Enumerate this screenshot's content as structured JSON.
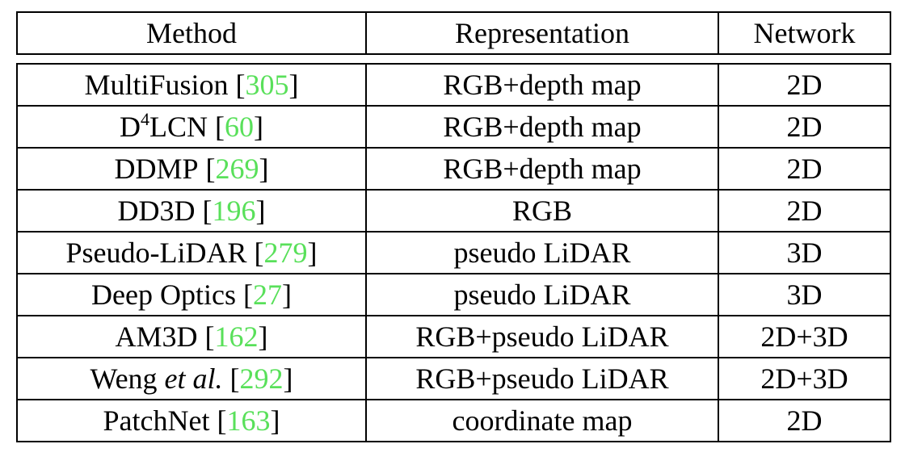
{
  "table": {
    "headers": [
      "Method",
      "Representation",
      "Network"
    ],
    "rows": [
      {
        "method_pre": "MultiFusion",
        "method_sup": "",
        "method_post": "",
        "method_italic": "",
        "method_tail": "",
        "cite": "305",
        "representation": "RGB+depth map",
        "network": "2D"
      },
      {
        "method_pre": "D",
        "method_sup": "4",
        "method_post": "LCN",
        "method_italic": "",
        "method_tail": "",
        "cite": "60",
        "representation": "RGB+depth map",
        "network": "2D"
      },
      {
        "method_pre": "DDMP",
        "method_sup": "",
        "method_post": "",
        "method_italic": "",
        "method_tail": "",
        "cite": "269",
        "representation": "RGB+depth map",
        "network": "2D"
      },
      {
        "method_pre": "DD3D",
        "method_sup": "",
        "method_post": "",
        "method_italic": "",
        "method_tail": "",
        "cite": "196",
        "representation": "RGB",
        "network": "2D"
      },
      {
        "method_pre": "Pseudo-LiDAR",
        "method_sup": "",
        "method_post": "",
        "method_italic": "",
        "method_tail": "",
        "cite": "279",
        "representation": "pseudo LiDAR",
        "network": "3D"
      },
      {
        "method_pre": "Deep Optics",
        "method_sup": "",
        "method_post": "",
        "method_italic": "",
        "method_tail": "",
        "cite": "27",
        "representation": "pseudo LiDAR",
        "network": "3D"
      },
      {
        "method_pre": "AM3D",
        "method_sup": "",
        "method_post": "",
        "method_italic": "",
        "method_tail": "",
        "cite": "162",
        "representation": "RGB+pseudo LiDAR",
        "network": "2D+3D"
      },
      {
        "method_pre": "Weng",
        "method_sup": "",
        "method_post": "",
        "method_italic": "et al.",
        "method_tail": "",
        "cite": "292",
        "representation": "RGB+pseudo LiDAR",
        "network": "2D+3D"
      },
      {
        "method_pre": "PatchNet",
        "method_sup": "",
        "method_post": "",
        "method_italic": "",
        "method_tail": "",
        "cite": "163",
        "representation": "coordinate map",
        "network": "2D"
      }
    ]
  },
  "colors": {
    "citation": "#59e05a",
    "text": "#000000"
  }
}
